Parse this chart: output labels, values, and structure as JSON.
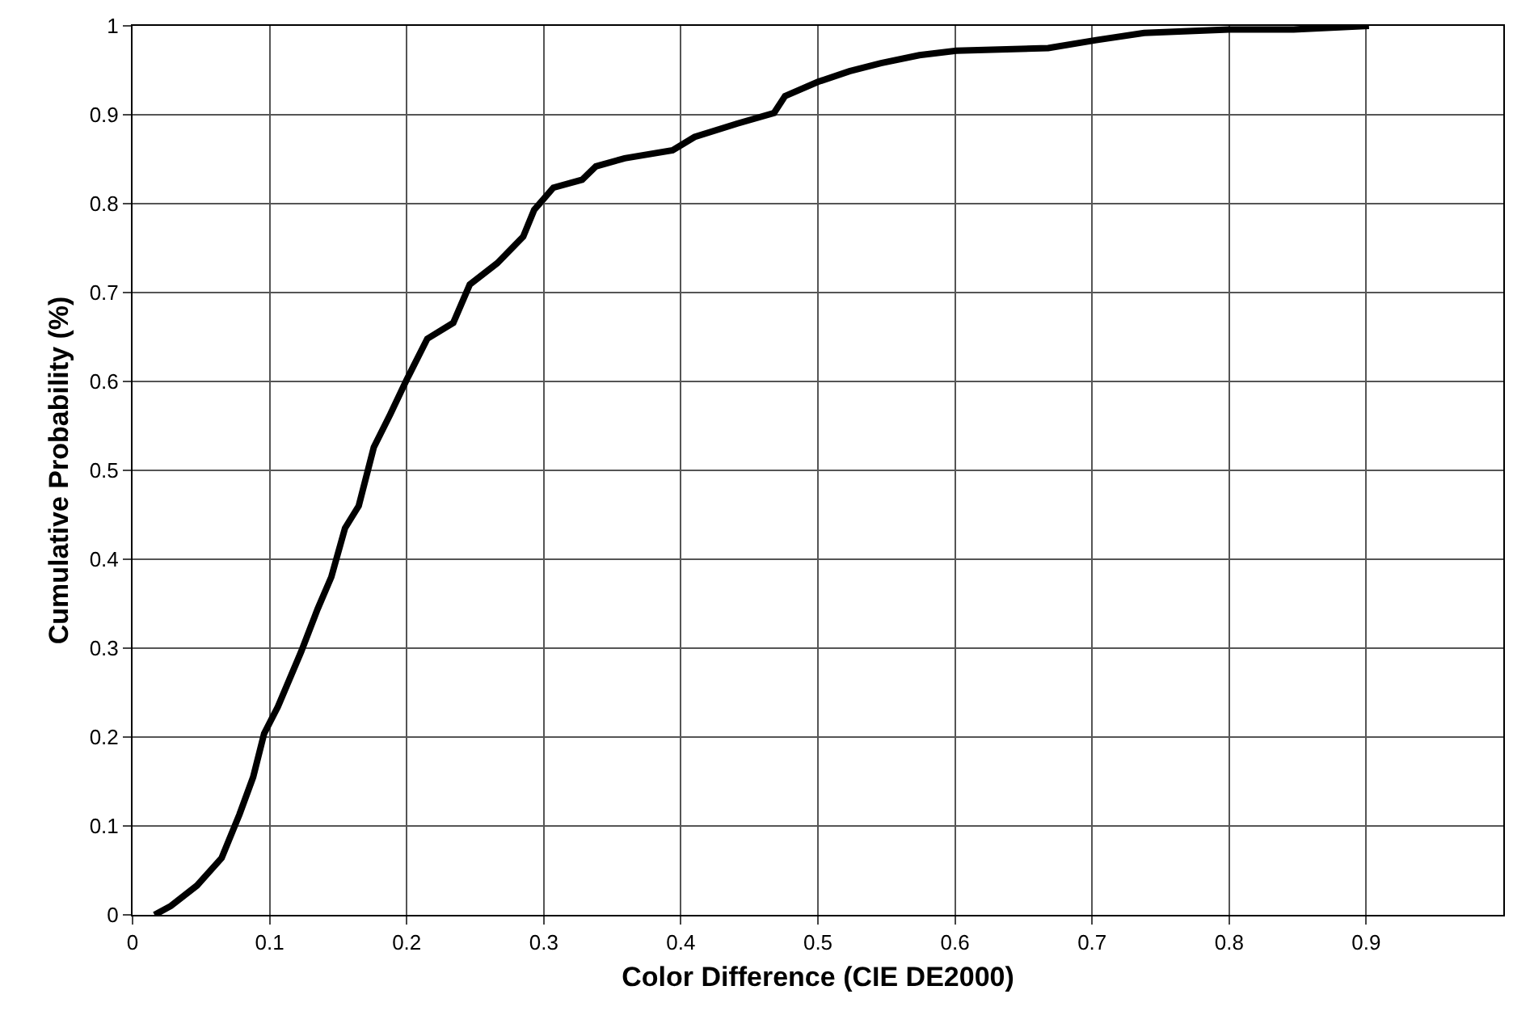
{
  "chart_data": {
    "type": "line",
    "xlabel": "Color Difference (CIE DE2000)",
    "ylabel": "Cumulative Probability (%)",
    "xlim": [
      0,
      1
    ],
    "xticks": [
      0,
      0.1,
      0.2,
      0.3,
      0.4,
      0.5,
      0.6,
      0.7,
      0.8,
      0.9
    ],
    "ylim": [
      0,
      1
    ],
    "yticks": [
      0,
      0.1,
      0.2,
      0.3,
      0.4,
      0.5,
      0.6,
      0.7,
      0.8,
      0.9,
      1
    ],
    "grid": true,
    "marker": "none",
    "line_style": "solid",
    "series": [
      {
        "color": "#000000",
        "x": [
          0.016,
          0.028,
          0.047,
          0.065,
          0.078,
          0.088,
          0.096,
          0.106,
          0.123,
          0.135,
          0.145,
          0.155,
          0.165,
          0.176,
          0.188,
          0.2,
          0.215,
          0.234,
          0.246,
          0.266,
          0.285,
          0.293,
          0.307,
          0.328,
          0.338,
          0.359,
          0.394,
          0.41,
          0.441,
          0.468,
          0.476,
          0.5,
          0.523,
          0.546,
          0.574,
          0.601,
          0.668,
          0.703,
          0.738,
          0.8,
          0.847,
          0.902
        ],
        "values": [
          0,
          0.01,
          0.033,
          0.064,
          0.113,
          0.155,
          0.204,
          0.234,
          0.296,
          0.344,
          0.38,
          0.435,
          0.46,
          0.526,
          0.563,
          0.602,
          0.648,
          0.666,
          0.709,
          0.733,
          0.763,
          0.793,
          0.818,
          0.827,
          0.842,
          0.851,
          0.86,
          0.875,
          0.89,
          0.902,
          0.921,
          0.937,
          0.949,
          0.958,
          0.967,
          0.972,
          0.975,
          0.984,
          0.992,
          0.996,
          0.996,
          1
        ]
      }
    ]
  }
}
